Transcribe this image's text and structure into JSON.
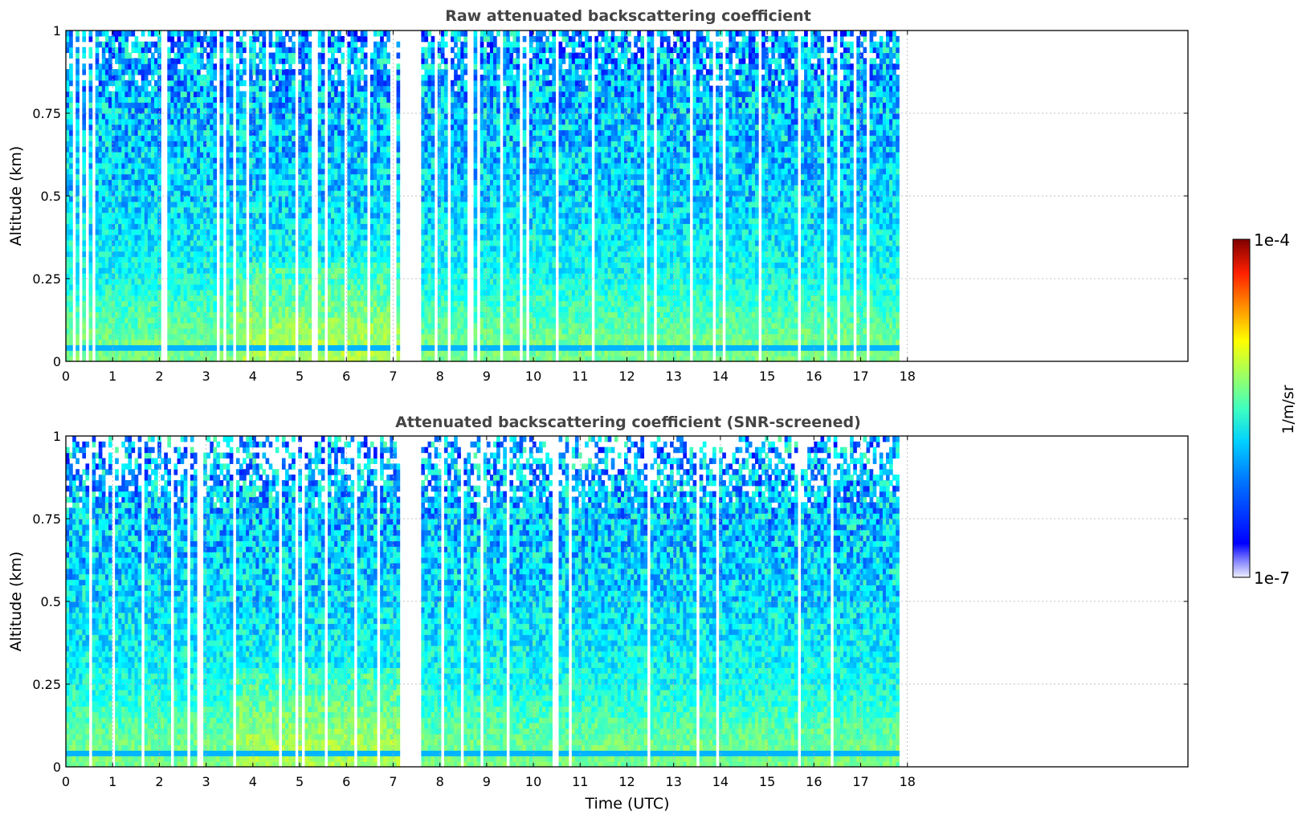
{
  "figure": {
    "colorbar": {
      "label": "1/m/sr",
      "max_label": "1e-4",
      "min_label": "1e-7",
      "range": [
        1e-07,
        0.0001
      ],
      "scale": "log",
      "colormap": "jet"
    }
  },
  "chart_data": [
    {
      "type": "heatmap",
      "title": "Raw attenuated backscattering coefficient",
      "xlabel": "",
      "ylabel": "Altitude (km)",
      "xlim": [
        0,
        24
      ],
      "ylim": [
        0,
        1
      ],
      "x_ticks": [
        0,
        1,
        2,
        3,
        4,
        5,
        6,
        7,
        8,
        9,
        10,
        11,
        12,
        13,
        14,
        15,
        16,
        17,
        18
      ],
      "y_ticks": [
        0,
        0.25,
        0.5,
        0.75,
        1
      ],
      "y_tick_labels": [
        "0",
        "0.25",
        "0.5",
        "0.75",
        "1"
      ],
      "grid": true,
      "data_coverage": [
        [
          0,
          7.1
        ],
        [
          7.6,
          17.8
        ]
      ],
      "units": "1/m/sr",
      "profile": [
        {
          "altitude": 0.05,
          "value": 3e-06
        },
        {
          "altitude": 0.25,
          "value": 1.5e-06
        },
        {
          "altitude": 0.5,
          "value": 1e-06
        },
        {
          "altitude": 0.75,
          "value": 9e-07
        },
        {
          "altitude": 1.0,
          "value": 7e-07
        }
      ],
      "colorscale": "log"
    },
    {
      "type": "heatmap",
      "title": "Attenuated backscattering coefficient (SNR-screened)",
      "xlabel": "Time (UTC)",
      "ylabel": "Altitude (km)",
      "xlim": [
        0,
        24
      ],
      "ylim": [
        0,
        1
      ],
      "x_ticks": [
        0,
        1,
        2,
        3,
        4,
        5,
        6,
        7,
        8,
        9,
        10,
        11,
        12,
        13,
        14,
        15,
        16,
        17,
        18
      ],
      "y_ticks": [
        0,
        0.25,
        0.5,
        0.75,
        1
      ],
      "y_tick_labels": [
        "0",
        "0.25",
        "0.5",
        "0.75",
        "1"
      ],
      "grid": true,
      "data_coverage": [
        [
          0,
          7.1
        ],
        [
          7.6,
          17.8
        ]
      ],
      "units": "1/m/sr",
      "profile": [
        {
          "altitude": 0.05,
          "value": 3e-06
        },
        {
          "altitude": 0.25,
          "value": 1.5e-06
        },
        {
          "altitude": 0.5,
          "value": 1.1e-06
        },
        {
          "altitude": 0.75,
          "value": 9e-07
        },
        {
          "altitude": 0.95,
          "value": 8e-07
        }
      ],
      "colorscale": "log"
    }
  ]
}
